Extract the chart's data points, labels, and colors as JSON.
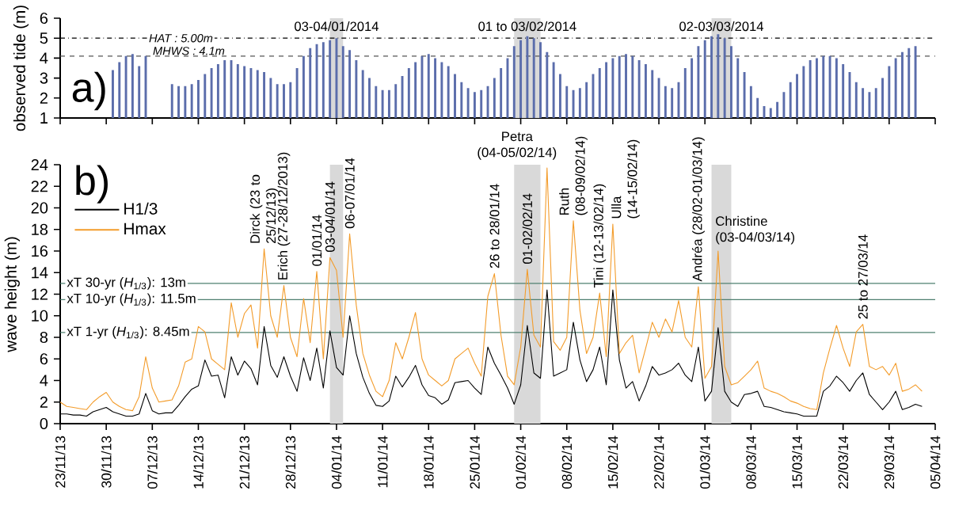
{
  "chart_data": [
    {
      "type": "bar",
      "ylabel": "observed tide (m)",
      "color": "#5b6dab",
      "x": [
        "2013-12-01",
        "2013-12-02",
        "2013-12-03",
        "2013-12-04",
        "2013-12-05",
        "2013-12-06",
        "2013-12-10",
        "2013-12-11",
        "2013-12-12",
        "2013-12-13",
        "2013-12-14",
        "2013-12-15",
        "2013-12-16",
        "2013-12-17",
        "2013-12-18",
        "2013-12-19",
        "2013-12-20",
        "2013-12-21",
        "2013-12-22",
        "2013-12-23",
        "2013-12-24",
        "2013-12-25",
        "2013-12-26",
        "2013-12-27",
        "2013-12-28",
        "2013-12-29",
        "2013-12-30",
        "2013-12-31",
        "2014-01-01",
        "2014-01-02",
        "2014-01-03",
        "2014-01-04",
        "2014-01-05",
        "2014-01-06",
        "2014-01-07",
        "2014-01-08",
        "2014-01-09",
        "2014-01-10",
        "2014-01-11",
        "2014-01-12",
        "2014-01-13",
        "2014-01-14",
        "2014-01-15",
        "2014-01-16",
        "2014-01-17",
        "2014-01-18",
        "2014-01-19",
        "2014-01-20",
        "2014-01-21",
        "2014-01-22",
        "2014-01-23",
        "2014-01-24",
        "2014-01-25",
        "2014-01-26",
        "2014-01-27",
        "2014-01-28",
        "2014-01-29",
        "2014-01-30",
        "2014-01-31",
        "2014-02-01",
        "2014-02-02",
        "2014-02-03",
        "2014-02-04",
        "2014-02-05",
        "2014-02-06",
        "2014-02-07",
        "2014-02-08",
        "2014-02-09",
        "2014-02-10",
        "2014-02-11",
        "2014-02-12",
        "2014-02-13",
        "2014-02-14",
        "2014-02-15",
        "2014-02-16",
        "2014-02-17",
        "2014-02-18",
        "2014-02-19",
        "2014-02-20",
        "2014-02-21",
        "2014-02-22",
        "2014-02-23",
        "2014-02-24",
        "2014-02-25",
        "2014-02-26",
        "2014-02-27",
        "2014-02-28",
        "2014-03-01",
        "2014-03-02",
        "2014-03-03",
        "2014-03-04",
        "2014-03-05",
        "2014-03-06",
        "2014-03-07",
        "2014-03-08",
        "2014-03-09",
        "2014-03-10",
        "2014-03-11",
        "2014-03-12",
        "2014-03-13",
        "2014-03-14",
        "2014-03-15",
        "2014-03-16",
        "2014-03-17",
        "2014-03-18",
        "2014-03-19",
        "2014-03-20",
        "2014-03-21",
        "2014-03-22",
        "2014-03-23",
        "2014-03-24",
        "2014-03-25",
        "2014-03-26",
        "2014-03-27",
        "2014-03-28",
        "2014-03-29",
        "2014-03-30",
        "2014-03-31",
        "2014-04-01",
        "2014-04-02"
      ],
      "values": [
        3.4,
        3.8,
        4.1,
        4.2,
        3.6,
        4.1,
        2.7,
        2.6,
        2.6,
        2.7,
        2.9,
        3.2,
        3.5,
        3.7,
        3.9,
        3.9,
        3.7,
        3.6,
        3.5,
        3.4,
        3.3,
        3.0,
        2.7,
        2.7,
        2.8,
        3.5,
        4.1,
        4.5,
        4.7,
        4.8,
        4.9,
        5.0,
        4.6,
        4.4,
        3.9,
        3.4,
        3.0,
        2.6,
        2.4,
        2.4,
        2.7,
        3.1,
        3.5,
        3.8,
        4.1,
        4.2,
        4.0,
        3.8,
        3.6,
        3.2,
        2.8,
        2.5,
        2.3,
        2.4,
        2.6,
        3.0,
        3.5,
        4.0,
        4.6,
        4.9,
        5.1,
        5.0,
        4.8,
        4.3,
        3.8,
        3.2,
        2.6,
        2.4,
        2.5,
        2.8,
        3.2,
        3.5,
        3.8,
        4.0,
        4.1,
        4.2,
        4.1,
        3.9,
        3.7,
        3.4,
        3.0,
        2.6,
        2.5,
        2.8,
        3.5,
        4.0,
        4.6,
        4.9,
        5.1,
        5.2,
        5.0,
        4.6,
        4.0,
        3.3,
        2.6,
        2.0,
        1.6,
        1.5,
        1.8,
        2.3,
        2.8,
        3.2,
        3.6,
        3.9,
        4.0,
        4.1,
        4.1,
        4.0,
        3.7,
        3.3,
        2.8,
        2.5,
        2.3,
        2.5,
        3.0,
        3.6,
        4.0,
        4.3,
        4.5,
        4.6
      ],
      "xlim": [
        "2013-11-23",
        "2014-04-05"
      ],
      "ylim": [
        1,
        6
      ],
      "yticks": [
        1,
        2,
        3,
        4,
        5,
        6
      ],
      "tick_labels": "y",
      "xticks": [
        {
          "value": "2013-11-23",
          "label": null
        },
        {
          "value": "2013-11-30",
          "label": null
        },
        {
          "value": "2013-12-07",
          "label": null
        },
        {
          "value": "2013-12-14",
          "label": null
        },
        {
          "value": "2013-12-21",
          "label": null
        },
        {
          "value": "2013-12-28",
          "label": null
        },
        {
          "value": "2014-01-04",
          "label": null
        },
        {
          "value": "2014-01-11",
          "label": null
        },
        {
          "value": "2014-01-18",
          "label": null
        },
        {
          "value": "2014-01-25",
          "label": null
        },
        {
          "value": "2014-02-01",
          "label": null
        },
        {
          "value": "2014-02-08",
          "label": null
        },
        {
          "value": "2014-02-15",
          "label": null
        },
        {
          "value": "2014-02-22",
          "label": null
        },
        {
          "value": "2014-03-01",
          "label": null
        },
        {
          "value": "2014-03-08",
          "label": null
        },
        {
          "value": "2014-03-15",
          "label": null
        },
        {
          "value": "2014-03-22",
          "label": null
        },
        {
          "value": "2014-03-29",
          "label": null
        },
        {
          "value": "2014-04-05",
          "label": null
        }
      ],
      "ref_lines": [
        {
          "axis": "y",
          "value": 5.0,
          "label": "HAT : 5.00m",
          "color": "#000000",
          "line_style": "dashdot"
        },
        {
          "axis": "y",
          "value": 4.1,
          "label": "MHWS : 4.1m",
          "color": "#555555",
          "line_style": "dashed"
        }
      ],
      "bands": [
        {
          "axis": "x",
          "from": "2014-01-03",
          "to": "2014-01-05",
          "label": "03-04/01/2014",
          "color": "#d9d9d9"
        },
        {
          "axis": "x",
          "from": "2014-01-31",
          "to": "2014-02-04",
          "label": "01 to 03/02/2014",
          "color": "#d9d9d9"
        },
        {
          "axis": "x",
          "from": "2014-03-02",
          "to": "2014-03-05",
          "label": "02-03/03/2014",
          "color": "#d9d9d9"
        }
      ],
      "annotations": [
        "a)"
      ]
    },
    {
      "type": "line",
      "ylabel": "wave height (m)",
      "legend": "top left",
      "x": [
        "2013-11-23",
        "2013-11-24",
        "2013-11-25",
        "2013-11-26",
        "2013-11-27",
        "2013-11-28",
        "2013-11-29",
        "2013-11-30",
        "2013-12-01",
        "2013-12-02",
        "2013-12-03",
        "2013-12-04",
        "2013-12-05",
        "2013-12-06",
        "2013-12-07",
        "2013-12-08",
        "2013-12-09",
        "2013-12-10",
        "2013-12-11",
        "2013-12-12",
        "2013-12-13",
        "2013-12-14",
        "2013-12-15",
        "2013-12-16",
        "2013-12-17",
        "2013-12-18",
        "2013-12-19",
        "2013-12-20",
        "2013-12-21",
        "2013-12-22",
        "2013-12-23",
        "2013-12-24",
        "2013-12-25",
        "2013-12-26",
        "2013-12-27",
        "2013-12-28",
        "2013-12-29",
        "2013-12-30",
        "2013-12-31",
        "2014-01-01",
        "2014-01-02",
        "2014-01-03",
        "2014-01-04",
        "2014-01-05",
        "2014-01-06",
        "2014-01-07",
        "2014-01-08",
        "2014-01-09",
        "2014-01-10",
        "2014-01-11",
        "2014-01-12",
        "2014-01-13",
        "2014-01-14",
        "2014-01-15",
        "2014-01-16",
        "2014-01-17",
        "2014-01-18",
        "2014-01-19",
        "2014-01-20",
        "2014-01-21",
        "2014-01-22",
        "2014-01-23",
        "2014-01-24",
        "2014-01-25",
        "2014-01-26",
        "2014-01-27",
        "2014-01-28",
        "2014-01-29",
        "2014-01-30",
        "2014-01-31",
        "2014-02-01",
        "2014-02-02",
        "2014-02-03",
        "2014-02-04",
        "2014-02-05",
        "2014-02-06",
        "2014-02-07",
        "2014-02-08",
        "2014-02-09",
        "2014-02-10",
        "2014-02-11",
        "2014-02-12",
        "2014-02-13",
        "2014-02-14",
        "2014-02-15",
        "2014-02-16",
        "2014-02-17",
        "2014-02-18",
        "2014-02-19",
        "2014-02-20",
        "2014-02-21",
        "2014-02-22",
        "2014-02-23",
        "2014-02-24",
        "2014-02-25",
        "2014-02-26",
        "2014-02-27",
        "2014-02-28",
        "2014-03-01",
        "2014-03-02",
        "2014-03-03",
        "2014-03-04",
        "2014-03-05",
        "2014-03-06",
        "2014-03-07",
        "2014-03-08",
        "2014-03-09",
        "2014-03-10",
        "2014-03-11",
        "2014-03-12",
        "2014-03-13",
        "2014-03-14",
        "2014-03-15",
        "2014-03-16",
        "2014-03-17",
        "2014-03-18",
        "2014-03-19",
        "2014-03-20",
        "2014-03-21",
        "2014-03-22",
        "2014-03-23",
        "2014-03-24",
        "2014-03-25",
        "2014-03-26",
        "2014-03-27",
        "2014-03-28",
        "2014-03-29",
        "2014-03-30",
        "2014-03-31",
        "2014-04-01",
        "2014-04-02",
        "2014-04-03"
      ],
      "series": [
        {
          "name": "H1/3",
          "color": "#000000",
          "values": [
            0.9,
            0.9,
            0.8,
            0.8,
            0.7,
            1.1,
            1.3,
            1.5,
            1.1,
            0.9,
            0.7,
            0.7,
            0.9,
            2.8,
            1.2,
            0.9,
            1.0,
            1.0,
            1.7,
            2.5,
            3.2,
            3.5,
            5.9,
            4.4,
            4.5,
            2.4,
            6.2,
            4.5,
            5.8,
            5.1,
            3.6,
            9.0,
            5.4,
            4.3,
            6.2,
            4.4,
            3.0,
            6.1,
            4.0,
            7.0,
            3.3,
            8.6,
            5.2,
            4.5,
            10.0,
            6.5,
            4.3,
            2.8,
            1.7,
            1.6,
            2.1,
            4.4,
            3.4,
            4.3,
            5.4,
            3.6,
            2.6,
            2.4,
            1.8,
            2.2,
            3.8,
            3.9,
            4.0,
            3.3,
            2.7,
            7.1,
            5.6,
            4.5,
            3.3,
            1.8,
            3.6,
            9.1,
            4.7,
            4.2,
            12.4,
            4.4,
            4.7,
            5.0,
            9.4,
            5.9,
            3.9,
            5.0,
            7.1,
            3.6,
            12.4,
            5.9,
            3.3,
            3.9,
            2.1,
            3.5,
            5.3,
            4.5,
            4.7,
            5.0,
            5.6,
            4.5,
            3.9,
            7.1,
            2.1,
            3.0,
            8.9,
            3.0,
            2.0,
            1.6,
            2.7,
            2.8,
            3.0,
            1.6,
            1.5,
            1.3,
            1.1,
            1.0,
            0.9,
            0.7,
            0.7,
            0.7,
            3.0,
            3.5,
            4.4,
            3.8,
            3.0,
            4.0,
            4.7,
            2.7,
            2.0,
            1.3,
            2.0,
            3.0,
            1.3,
            1.5,
            1.8,
            1.6
          ]
        },
        {
          "name": "Hmax",
          "color": "#f39c2b",
          "values": [
            2.0,
            1.6,
            1.5,
            1.4,
            1.3,
            2.0,
            2.5,
            2.9,
            2.0,
            1.6,
            1.3,
            1.2,
            2.5,
            6.2,
            3.3,
            2.0,
            2.1,
            2.2,
            3.5,
            5.7,
            6.0,
            9.0,
            8.5,
            6.0,
            5.5,
            5.0,
            11.2,
            8.0,
            10.2,
            11.0,
            7.0,
            16.2,
            10.0,
            8.0,
            12.8,
            8.0,
            6.2,
            11.6,
            7.5,
            14.1,
            6.0,
            15.4,
            14.2,
            8.0,
            17.6,
            11.0,
            6.5,
            4.5,
            3.0,
            2.5,
            4.0,
            7.5,
            6.0,
            8.0,
            10.3,
            6.0,
            4.5,
            4.0,
            3.5,
            4.0,
            6.0,
            6.5,
            7.0,
            5.6,
            4.4,
            11.8,
            13.9,
            8.2,
            4.4,
            3.6,
            7.1,
            14.3,
            8.2,
            7.1,
            23.7,
            7.6,
            6.8,
            8.0,
            18.8,
            10.5,
            6.5,
            8.0,
            12.1,
            6.2,
            18.5,
            6.5,
            7.5,
            8.2,
            4.7,
            7.0,
            9.4,
            8.0,
            9.7,
            8.5,
            11.4,
            8.0,
            7.1,
            12.7,
            4.2,
            5.3,
            16.0,
            5.3,
            3.6,
            3.8,
            4.4,
            5.0,
            5.8,
            3.3,
            3.0,
            2.8,
            2.5,
            2.1,
            1.9,
            1.6,
            1.4,
            1.3,
            4.7,
            7.0,
            9.1,
            7.0,
            5.3,
            8.5,
            9.2,
            5.3,
            5.0,
            5.3,
            4.5,
            5.6,
            3.0,
            3.2,
            3.6,
            3.0
          ]
        }
      ],
      "xlim": [
        "2013-11-23",
        "2014-04-05"
      ],
      "ylim": [
        0,
        24
      ],
      "yticks": [
        0,
        2,
        4,
        6,
        8,
        10,
        12,
        14,
        16,
        18,
        20,
        22,
        24
      ],
      "xticks": [
        {
          "value": "2013-11-23",
          "label": "23/11/13"
        },
        {
          "value": "2013-11-30",
          "label": "30/11/13"
        },
        {
          "value": "2013-12-07",
          "label": "07/12/13"
        },
        {
          "value": "2013-12-14",
          "label": "14/12/13"
        },
        {
          "value": "2013-12-21",
          "label": "21/12/13"
        },
        {
          "value": "2013-12-28",
          "label": "28/12/13"
        },
        {
          "value": "2014-01-04",
          "label": "04/01/14"
        },
        {
          "value": "2014-01-11",
          "label": "11/01/14"
        },
        {
          "value": "2014-01-18",
          "label": "18/01/14"
        },
        {
          "value": "2014-01-25",
          "label": "25/01/14"
        },
        {
          "value": "2014-02-01",
          "label": "01/02/14"
        },
        {
          "value": "2014-02-08",
          "label": "08/02/14"
        },
        {
          "value": "2014-02-15",
          "label": "15/02/14"
        },
        {
          "value": "2014-02-22",
          "label": "22/02/14"
        },
        {
          "value": "2014-03-01",
          "label": "01/03/14"
        },
        {
          "value": "2014-03-08",
          "label": "08/03/14"
        },
        {
          "value": "2014-03-15",
          "label": "15/03/14"
        },
        {
          "value": "2014-03-22",
          "label": "22/03/14"
        },
        {
          "value": "2014-03-29",
          "label": "29/03/14"
        },
        {
          "value": "2014-04-05",
          "label": "05/04/14"
        }
      ],
      "ref_lines": [
        {
          "axis": "y",
          "value": 13,
          "label": "xT 30-yr (*H*$_{1/3}$): 13m",
          "color": "#4f8070"
        },
        {
          "axis": "y",
          "value": 11.5,
          "label": "xT 10-yr (*H*$_{1/3}$): 11.5m",
          "color": "#4f8070"
        },
        {
          "axis": "y",
          "value": 8.45,
          "label": "xT 1-yr (*H*$_{1/3}$): 8.45m",
          "color": "#4f8070"
        }
      ],
      "bands": [
        {
          "axis": "x",
          "from": "2014-01-03",
          "to": "2014-01-05",
          "color": "#d9d9d9"
        },
        {
          "axis": "x",
          "from": "2014-01-31",
          "to": "2014-02-04",
          "color": "#d9d9d9"
        },
        {
          "axis": "x",
          "from": "2014-03-02",
          "to": "2014-03-05",
          "color": "#d9d9d9"
        }
      ],
      "annotations": [
        "b)",
        {
          "text": "Dirck (23 to 25/12/13)",
          "x": "2013-12-24",
          "y": 16.2
        },
        {
          "text": "Erich (27-28/12/2013)",
          "x": "2013-12-27",
          "y": 12.8
        },
        {
          "text": "01/01/14",
          "x": "2014-01-01",
          "y": 14.1
        },
        {
          "text": "03-04/01/14",
          "x": "2014-01-03",
          "y": 15.4
        },
        {
          "text": "06-07/01/14",
          "x": "2014-01-06",
          "y": 17.6
        },
        {
          "text": "26 to 28/01/14",
          "x": "2014-01-28",
          "y": 13.9
        },
        {
          "text": "01-02/02/14",
          "x": "2014-02-02",
          "y": 14.3
        },
        {
          "text": "Petra (04-05/02/14)",
          "x": "2014-02-05",
          "y": 23.7
        },
        {
          "text": "Ruth (08-09/02/14)",
          "x": "2014-02-09",
          "y": 18.8
        },
        {
          "text": "Tini (12-13/02/14)",
          "x": "2014-02-13",
          "y": 12.1
        },
        {
          "text": "Ulla (14-15/02/14)",
          "x": "2014-02-15",
          "y": 18.5
        },
        {
          "text": "Andréa (28/02-01/03/14)",
          "x": "2014-02-28",
          "y": 12.7
        },
        {
          "text": "Christine (03-04/03/14)",
          "x": "2014-03-03",
          "y": 16.0
        },
        {
          "text": "25 to 27/03/14",
          "x": "2014-03-25",
          "y": 9.2
        }
      ]
    }
  ]
}
